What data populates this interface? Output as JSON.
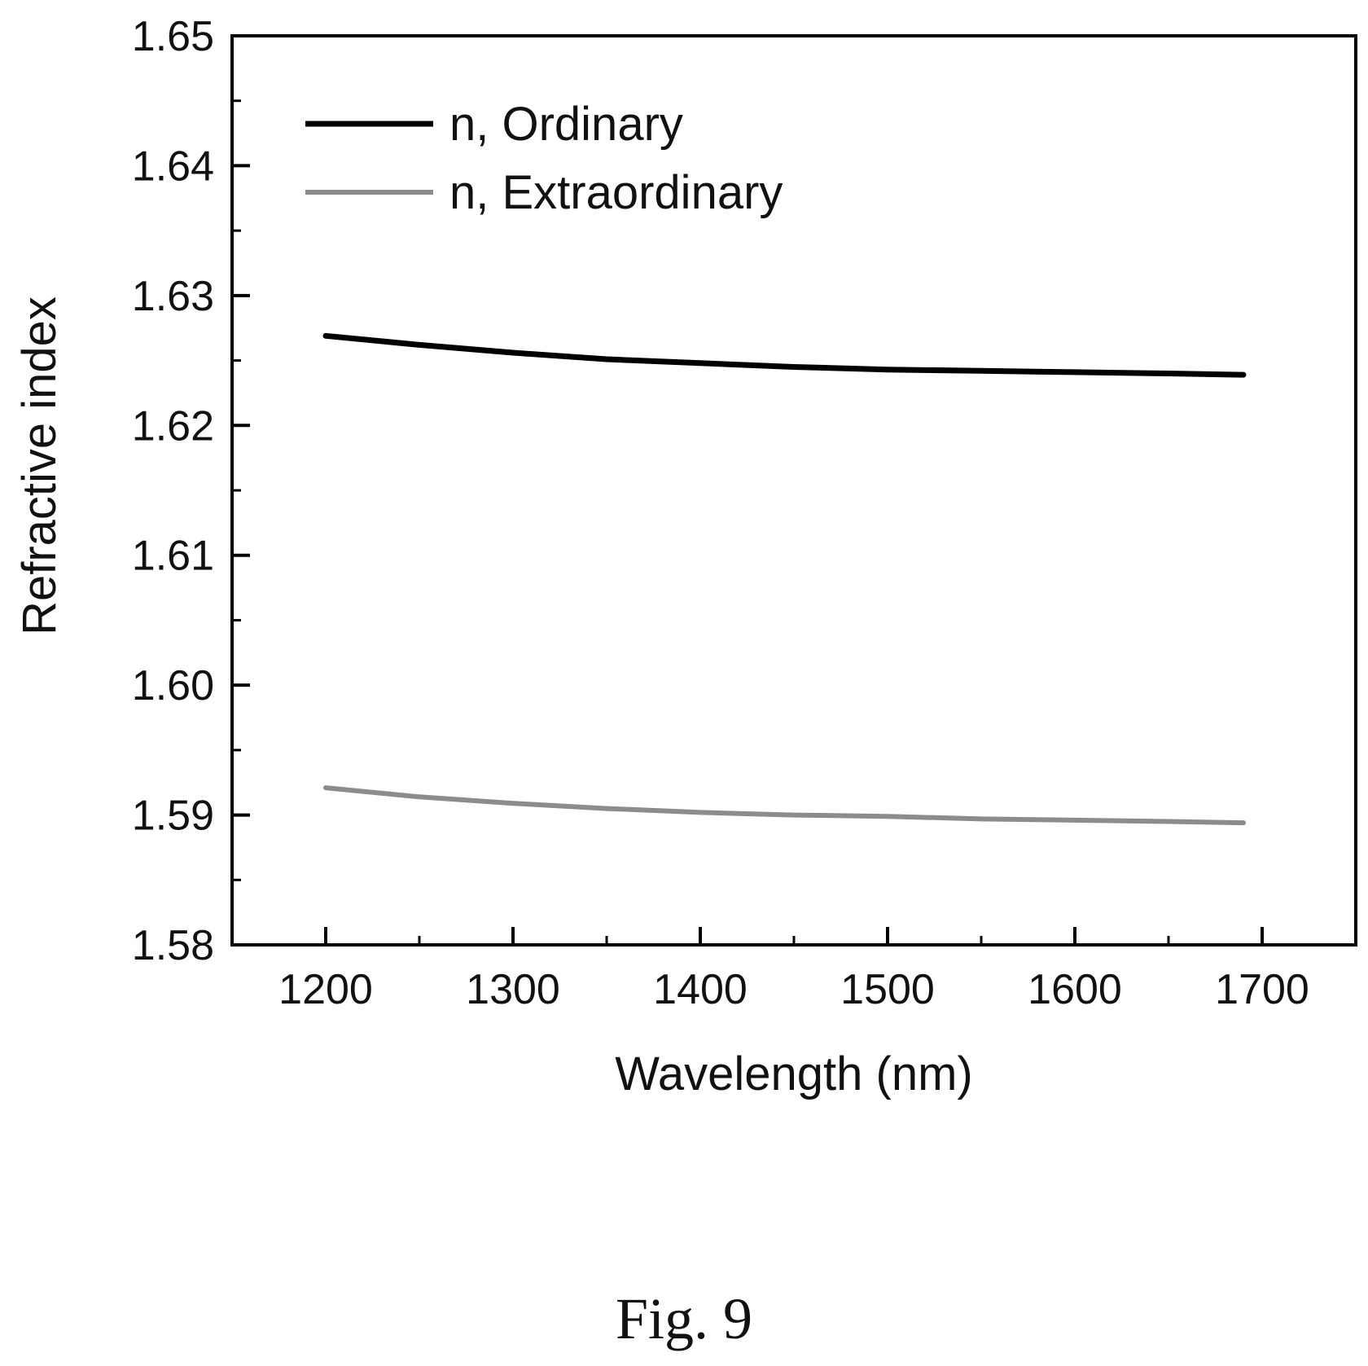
{
  "chart_data": {
    "type": "line",
    "xlabel": "Wavelength (nm)",
    "ylabel": "Refractive index",
    "xlim": [
      1150,
      1750
    ],
    "ylim": [
      1.58,
      1.65
    ],
    "xticks": [
      1200,
      1300,
      1400,
      1500,
      1600,
      1700
    ],
    "xtick_labels": [
      "1200",
      "1300",
      "1400",
      "1500",
      "1600",
      "1700"
    ],
    "yticks": [
      1.58,
      1.59,
      1.6,
      1.61,
      1.62,
      1.63,
      1.64,
      1.65
    ],
    "ytick_labels": [
      "1.58",
      "1.59",
      "1.60",
      "1.61",
      "1.62",
      "1.63",
      "1.64",
      "1.65"
    ],
    "grid": false,
    "legend_position": "top-left",
    "series": [
      {
        "name": "n, Ordinary",
        "color": "#000000",
        "x": [
          1200,
          1250,
          1300,
          1350,
          1400,
          1450,
          1500,
          1550,
          1600,
          1650,
          1690
        ],
        "y": [
          1.6269,
          1.6262,
          1.6256,
          1.6251,
          1.6248,
          1.6245,
          1.6243,
          1.6242,
          1.6241,
          1.624,
          1.6239
        ]
      },
      {
        "name": "n, Extraordinary",
        "color": "#8c8c8c",
        "x": [
          1200,
          1250,
          1300,
          1350,
          1400,
          1450,
          1500,
          1550,
          1600,
          1650,
          1690
        ],
        "y": [
          1.5921,
          1.5914,
          1.5909,
          1.5905,
          1.5902,
          1.59,
          1.5899,
          1.5897,
          1.5896,
          1.5895,
          1.5894
        ]
      }
    ]
  },
  "caption": "Fig. 9"
}
